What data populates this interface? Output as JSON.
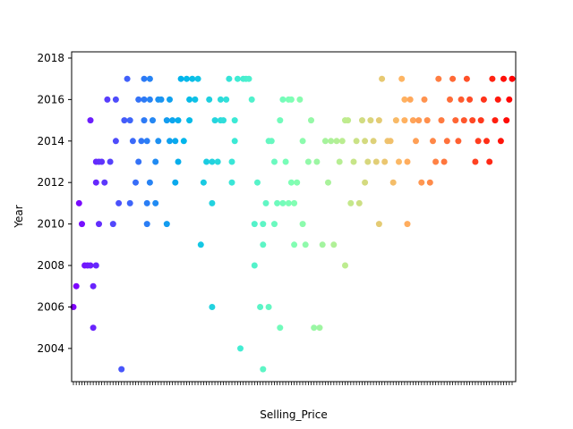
{
  "chart_data": {
    "type": "scatter",
    "title": "",
    "xlabel": "Selling_Price",
    "ylabel": "Year",
    "ylim": [
      2002.4,
      2018.3
    ],
    "yticks": [
      "2004",
      "2006",
      "2008",
      "2010",
      "2012",
      "2014",
      "2016",
      "2018"
    ],
    "grid": false,
    "legend": "none",
    "x_axis_note": "categorical axis, 156 sorted unique price values; tick labels overlap and are unreadable",
    "colormap": "rainbow",
    "colormap_stops": [
      "#8000ff",
      "#4062fa",
      "#00b5eb",
      "#40ecd4",
      "#80ffb4",
      "#c0eb8d",
      "#ffb462",
      "#ff6232",
      "#ff0000"
    ],
    "category_count": 156,
    "points": [
      [
        0,
        2006
      ],
      [
        1,
        2007
      ],
      [
        2,
        2011
      ],
      [
        3,
        2010
      ],
      [
        4,
        2008
      ],
      [
        5,
        2008
      ],
      [
        6,
        2015
      ],
      [
        6,
        2008
      ],
      [
        7,
        2007
      ],
      [
        7,
        2005
      ],
      [
        8,
        2013
      ],
      [
        8,
        2012
      ],
      [
        8,
        2008
      ],
      [
        9,
        2013
      ],
      [
        9,
        2010
      ],
      [
        10,
        2013
      ],
      [
        11,
        2012
      ],
      [
        12,
        2016
      ],
      [
        13,
        2013
      ],
      [
        14,
        2010
      ],
      [
        15,
        2016
      ],
      [
        15,
        2014
      ],
      [
        16,
        2011
      ],
      [
        17,
        2003
      ],
      [
        18,
        2015
      ],
      [
        19,
        2017
      ],
      [
        20,
        2011
      ],
      [
        20,
        2015
      ],
      [
        21,
        2014
      ],
      [
        22,
        2012
      ],
      [
        23,
        2016
      ],
      [
        23,
        2013
      ],
      [
        24,
        2014
      ],
      [
        25,
        2017
      ],
      [
        25,
        2016
      ],
      [
        25,
        2015
      ],
      [
        26,
        2014
      ],
      [
        26,
        2011
      ],
      [
        26,
        2010
      ],
      [
        27,
        2017
      ],
      [
        27,
        2012
      ],
      [
        27,
        2016
      ],
      [
        28,
        2015
      ],
      [
        29,
        2011
      ],
      [
        29,
        2013
      ],
      [
        30,
        2014
      ],
      [
        30,
        2016
      ],
      [
        31,
        2016
      ],
      [
        33,
        2015
      ],
      [
        33,
        2010
      ],
      [
        34,
        2016
      ],
      [
        34,
        2014
      ],
      [
        35,
        2015
      ],
      [
        36,
        2012
      ],
      [
        36,
        2014
      ],
      [
        37,
        2013
      ],
      [
        37,
        2015
      ],
      [
        38,
        2017
      ],
      [
        39,
        2014
      ],
      [
        40,
        2017
      ],
      [
        41,
        2016
      ],
      [
        41,
        2015
      ],
      [
        42,
        2017
      ],
      [
        43,
        2016
      ],
      [
        44,
        2017
      ],
      [
        45,
        2009
      ],
      [
        46,
        2012
      ],
      [
        47,
        2013
      ],
      [
        48,
        2016
      ],
      [
        49,
        2011
      ],
      [
        49,
        2006
      ],
      [
        49,
        2013
      ],
      [
        50,
        2015
      ],
      [
        51,
        2013
      ],
      [
        52,
        2016
      ],
      [
        52,
        2015
      ],
      [
        53,
        2015
      ],
      [
        54,
        2016
      ],
      [
        55,
        2017
      ],
      [
        56,
        2013
      ],
      [
        56,
        2012
      ],
      [
        57,
        2015
      ],
      [
        57,
        2014
      ],
      [
        58,
        2017
      ],
      [
        59,
        2004
      ],
      [
        60,
        2017
      ],
      [
        61,
        2017
      ],
      [
        62,
        2017
      ],
      [
        63,
        2016
      ],
      [
        64,
        2010
      ],
      [
        64,
        2008
      ],
      [
        65,
        2012
      ],
      [
        66,
        2006
      ],
      [
        67,
        2003
      ],
      [
        67,
        2009
      ],
      [
        67,
        2010
      ],
      [
        68,
        2011
      ],
      [
        69,
        2006
      ],
      [
        69,
        2014
      ],
      [
        70,
        2014
      ],
      [
        71,
        2013
      ],
      [
        71,
        2010
      ],
      [
        72,
        2011
      ],
      [
        73,
        2005
      ],
      [
        73,
        2015
      ],
      [
        74,
        2011
      ],
      [
        74,
        2016
      ],
      [
        75,
        2013
      ],
      [
        76,
        2011
      ],
      [
        76,
        2016
      ],
      [
        77,
        2016
      ],
      [
        77,
        2012
      ],
      [
        78,
        2009
      ],
      [
        78,
        2011
      ],
      [
        79,
        2012
      ],
      [
        80,
        2016
      ],
      [
        81,
        2010
      ],
      [
        81,
        2014
      ],
      [
        82,
        2009
      ],
      [
        83,
        2013
      ],
      [
        84,
        2015
      ],
      [
        85,
        2005
      ],
      [
        86,
        2013
      ],
      [
        87,
        2005
      ],
      [
        88,
        2009
      ],
      [
        89,
        2014
      ],
      [
        90,
        2012
      ],
      [
        91,
        2014
      ],
      [
        92,
        2009
      ],
      [
        93,
        2014
      ],
      [
        94,
        2013
      ],
      [
        95,
        2014
      ],
      [
        96,
        2015
      ],
      [
        96,
        2008
      ],
      [
        97,
        2015
      ],
      [
        98,
        2011
      ],
      [
        99,
        2013
      ],
      [
        100,
        2014
      ],
      [
        101,
        2011
      ],
      [
        102,
        2015
      ],
      [
        103,
        2014
      ],
      [
        103,
        2012
      ],
      [
        104,
        2013
      ],
      [
        105,
        2015
      ],
      [
        106,
        2014
      ],
      [
        107,
        2013
      ],
      [
        108,
        2015
      ],
      [
        108,
        2010
      ],
      [
        109,
        2017
      ],
      [
        110,
        2013
      ],
      [
        111,
        2014
      ],
      [
        112,
        2014
      ],
      [
        113,
        2012
      ],
      [
        114,
        2015
      ],
      [
        115,
        2013
      ],
      [
        116,
        2017
      ],
      [
        117,
        2016
      ],
      [
        117,
        2015
      ],
      [
        118,
        2013
      ],
      [
        118,
        2010
      ],
      [
        119,
        2016
      ],
      [
        120,
        2015
      ],
      [
        121,
        2014
      ],
      [
        122,
        2015
      ],
      [
        123,
        2012
      ],
      [
        124,
        2016
      ],
      [
        125,
        2015
      ],
      [
        126,
        2012
      ],
      [
        127,
        2014
      ],
      [
        128,
        2013
      ],
      [
        129,
        2017
      ],
      [
        130,
        2015
      ],
      [
        131,
        2013
      ],
      [
        132,
        2014
      ],
      [
        133,
        2016
      ],
      [
        134,
        2017
      ],
      [
        135,
        2015
      ],
      [
        136,
        2014
      ],
      [
        137,
        2016
      ],
      [
        138,
        2015
      ],
      [
        139,
        2017
      ],
      [
        140,
        2016
      ],
      [
        141,
        2015
      ],
      [
        142,
        2013
      ],
      [
        143,
        2014
      ],
      [
        144,
        2015
      ],
      [
        145,
        2016
      ],
      [
        146,
        2014
      ],
      [
        147,
        2013
      ],
      [
        148,
        2017
      ],
      [
        149,
        2015
      ],
      [
        150,
        2016
      ],
      [
        151,
        2014
      ],
      [
        152,
        2017
      ],
      [
        153,
        2015
      ],
      [
        154,
        2016
      ],
      [
        155,
        2017
      ]
    ]
  }
}
